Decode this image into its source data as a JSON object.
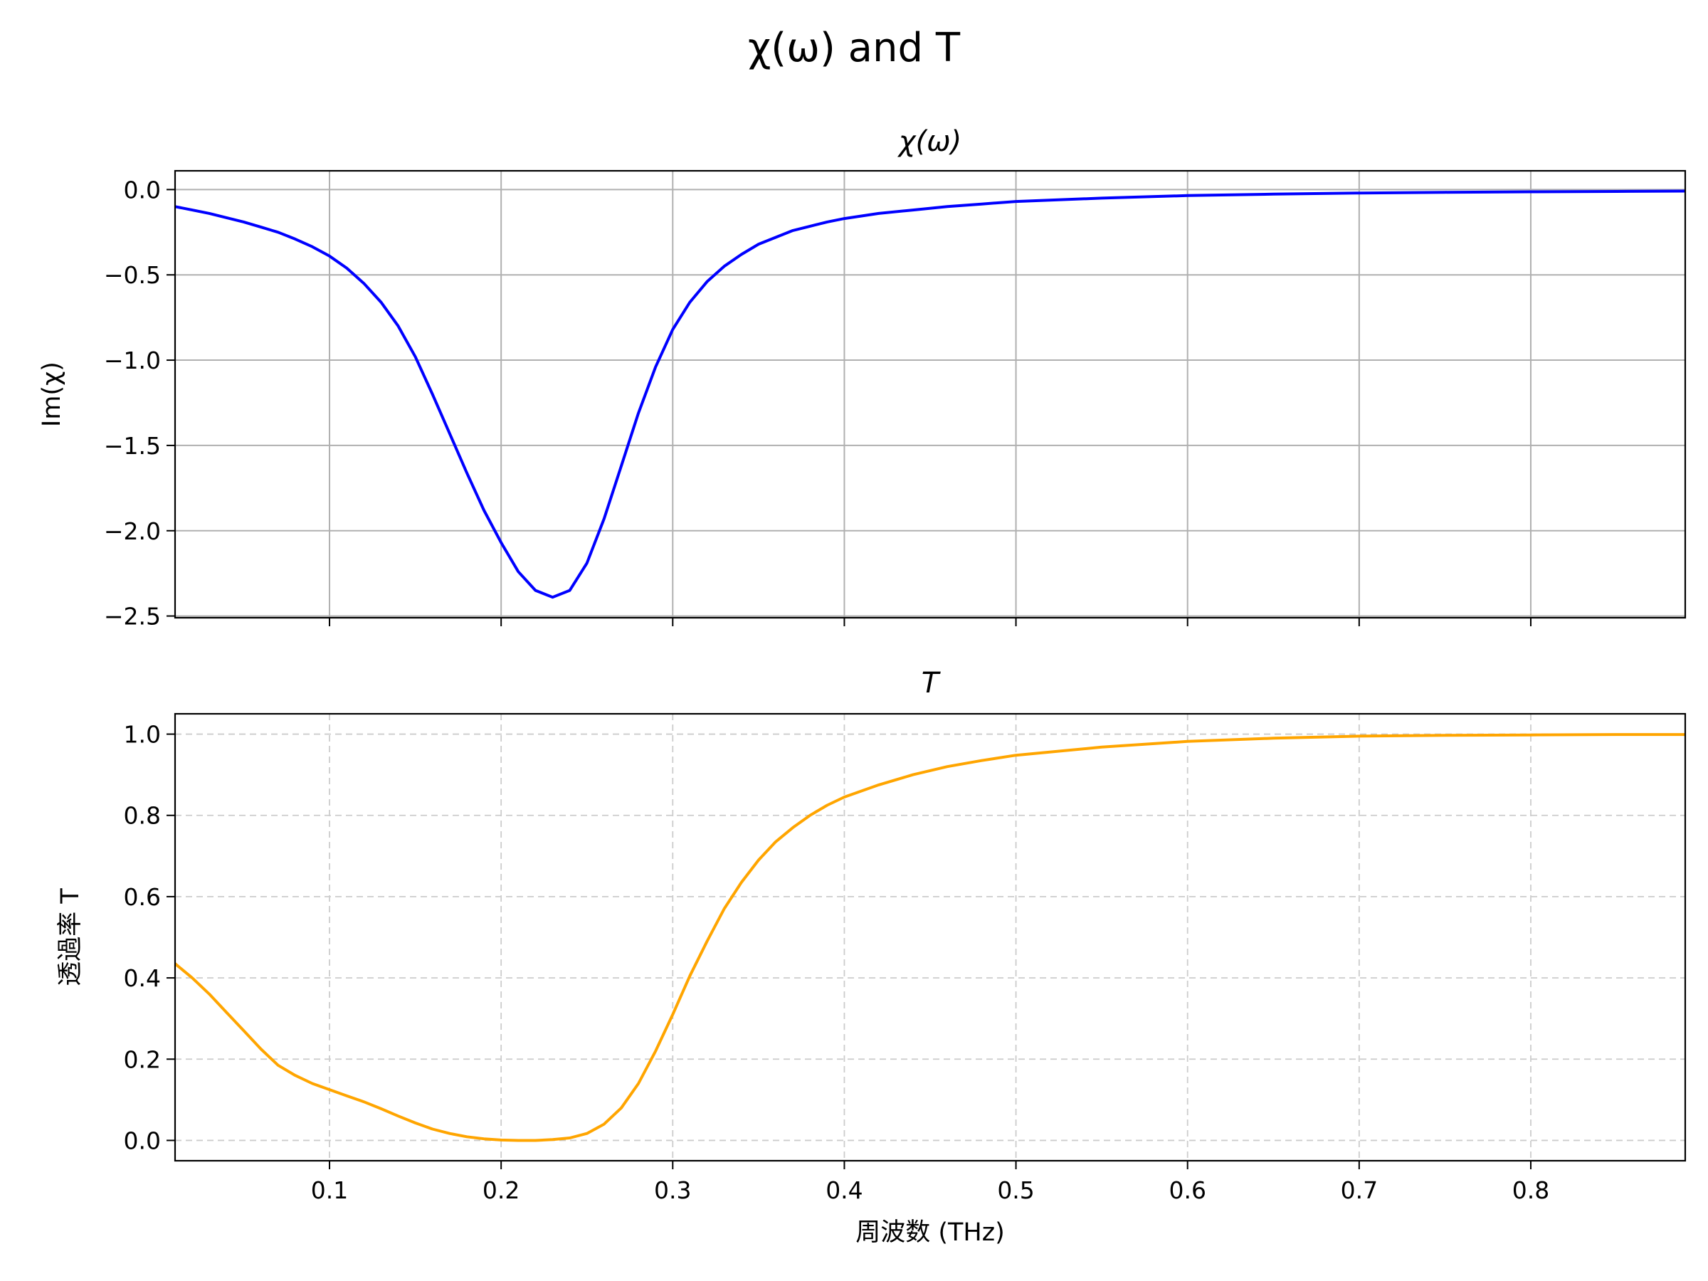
{
  "figure_title": "χ(ω) and T",
  "chart_data": [
    {
      "type": "line",
      "title": "χ(ω)",
      "xlabel": "",
      "ylabel": "Im(χ)",
      "xlim": [
        0.01,
        0.89
      ],
      "ylim": [
        -2.51,
        0.11
      ],
      "x_ticks": [
        0.1,
        0.2,
        0.3,
        0.4,
        0.5,
        0.6,
        0.7,
        0.8
      ],
      "x_tick_labels_visible": false,
      "y_ticks": [
        0.0,
        -0.5,
        -1.0,
        -1.5,
        -2.0,
        -2.5
      ],
      "y_tick_labels": [
        "0.0",
        "−0.5",
        "−1.0",
        "−1.5",
        "−2.0",
        "−2.5"
      ],
      "grid": "solid",
      "series": [
        {
          "color": "#0000ff",
          "x": [
            0.01,
            0.02,
            0.03,
            0.04,
            0.05,
            0.06,
            0.07,
            0.08,
            0.09,
            0.1,
            0.11,
            0.12,
            0.13,
            0.14,
            0.15,
            0.16,
            0.17,
            0.18,
            0.19,
            0.2,
            0.21,
            0.22,
            0.23,
            0.24,
            0.25,
            0.26,
            0.27,
            0.28,
            0.29,
            0.3,
            0.31,
            0.32,
            0.33,
            0.34,
            0.35,
            0.36,
            0.37,
            0.38,
            0.39,
            0.4,
            0.42,
            0.44,
            0.46,
            0.48,
            0.5,
            0.55,
            0.6,
            0.65,
            0.7,
            0.75,
            0.8,
            0.85,
            0.89
          ],
          "y": [
            -0.1,
            -0.12,
            -0.14,
            -0.165,
            -0.19,
            -0.22,
            -0.25,
            -0.29,
            -0.335,
            -0.39,
            -0.46,
            -0.55,
            -0.66,
            -0.8,
            -0.98,
            -1.2,
            -1.43,
            -1.66,
            -1.88,
            -2.07,
            -2.24,
            -2.35,
            -2.39,
            -2.35,
            -2.19,
            -1.93,
            -1.62,
            -1.31,
            -1.04,
            -0.82,
            -0.66,
            -0.54,
            -0.45,
            -0.38,
            -0.32,
            -0.28,
            -0.24,
            -0.215,
            -0.19,
            -0.17,
            -0.14,
            -0.12,
            -0.1,
            -0.085,
            -0.07,
            -0.05,
            -0.035,
            -0.027,
            -0.02,
            -0.016,
            -0.013,
            -0.011,
            -0.009
          ]
        }
      ]
    },
    {
      "type": "line",
      "title": "T",
      "xlabel": "周波数 (THz)",
      "ylabel": "透過率 T",
      "xlim": [
        0.01,
        0.89
      ],
      "ylim": [
        -0.05,
        1.05
      ],
      "x_ticks": [
        0.1,
        0.2,
        0.3,
        0.4,
        0.5,
        0.6,
        0.7,
        0.8
      ],
      "x_tick_labels": [
        "0.1",
        "0.2",
        "0.3",
        "0.4",
        "0.5",
        "0.6",
        "0.7",
        "0.8"
      ],
      "y_ticks": [
        0.0,
        0.2,
        0.4,
        0.6,
        0.8,
        1.0
      ],
      "y_tick_labels": [
        "0.0",
        "0.2",
        "0.4",
        "0.6",
        "0.8",
        "1.0"
      ],
      "grid": "dashed",
      "series": [
        {
          "color": "#ffa500",
          "x": [
            0.01,
            0.02,
            0.03,
            0.04,
            0.05,
            0.06,
            0.07,
            0.08,
            0.09,
            0.1,
            0.11,
            0.12,
            0.13,
            0.14,
            0.15,
            0.16,
            0.17,
            0.18,
            0.19,
            0.2,
            0.21,
            0.22,
            0.23,
            0.24,
            0.25,
            0.26,
            0.27,
            0.28,
            0.29,
            0.3,
            0.31,
            0.32,
            0.33,
            0.34,
            0.35,
            0.36,
            0.37,
            0.38,
            0.39,
            0.4,
            0.42,
            0.44,
            0.46,
            0.48,
            0.5,
            0.55,
            0.6,
            0.65,
            0.7,
            0.75,
            0.8,
            0.85,
            0.89
          ],
          "y": [
            0.435,
            0.4,
            0.36,
            0.315,
            0.27,
            0.225,
            0.185,
            0.16,
            0.14,
            0.125,
            0.11,
            0.095,
            0.078,
            0.06,
            0.043,
            0.028,
            0.017,
            0.009,
            0.004,
            0.001,
            0.0,
            0.0,
            0.002,
            0.006,
            0.017,
            0.04,
            0.08,
            0.14,
            0.22,
            0.31,
            0.405,
            0.49,
            0.57,
            0.635,
            0.69,
            0.735,
            0.77,
            0.8,
            0.825,
            0.845,
            0.875,
            0.9,
            0.92,
            0.935,
            0.948,
            0.968,
            0.982,
            0.99,
            0.995,
            0.997,
            0.998,
            0.999,
            0.999
          ]
        }
      ]
    }
  ]
}
